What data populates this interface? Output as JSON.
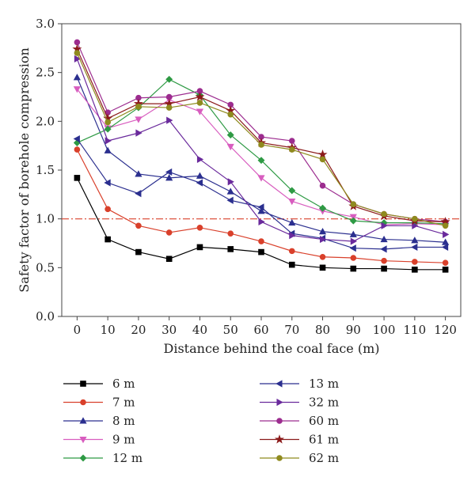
{
  "chart_data": {
    "type": "line",
    "xlabel": "Distance behind the coal face (m)",
    "ylabel": "Safety factor of borehole compression",
    "x": [
      0,
      10,
      20,
      30,
      40,
      50,
      60,
      70,
      80,
      90,
      100,
      110,
      120
    ],
    "xlim": [
      -5,
      125
    ],
    "ylim": [
      0,
      3.0
    ],
    "x_ticks": [
      "0",
      "10",
      "20",
      "30",
      "40",
      "50",
      "60",
      "70",
      "80",
      "90",
      "100",
      "110",
      "120"
    ],
    "y_ticks": [
      "0.0",
      "0.5",
      "1.0",
      "1.5",
      "2.0",
      "2.5",
      "3.0"
    ],
    "reference_line": {
      "y": 1.0,
      "color": "#d9402b",
      "style": "dash-dot"
    },
    "grid": false,
    "legend_position": "bottom",
    "series": [
      {
        "name": "6 m",
        "color": "#000000",
        "marker": "square",
        "values": [
          1.42,
          0.79,
          0.66,
          0.59,
          0.71,
          0.69,
          0.66,
          0.53,
          0.5,
          0.49,
          0.49,
          0.48,
          0.48
        ]
      },
      {
        "name": "7 m",
        "color": "#d9402b",
        "marker": "circle",
        "values": [
          1.71,
          1.1,
          0.93,
          0.86,
          0.91,
          0.85,
          0.77,
          0.67,
          0.61,
          0.6,
          0.57,
          0.56,
          0.55
        ]
      },
      {
        "name": "8 m",
        "color": "#2b2f8f",
        "marker": "triangle-up",
        "values": [
          2.45,
          1.7,
          1.46,
          1.42,
          1.44,
          1.28,
          1.08,
          0.96,
          0.87,
          0.84,
          0.79,
          0.78,
          0.76
        ]
      },
      {
        "name": "9 m",
        "color": "#d85dbf",
        "marker": "triangle-down",
        "values": [
          2.33,
          1.93,
          2.02,
          2.22,
          2.1,
          1.74,
          1.42,
          1.18,
          1.08,
          1.02,
          0.94,
          0.95,
          0.94
        ]
      },
      {
        "name": "12 m",
        "color": "#2e9a44",
        "marker": "diamond",
        "values": [
          1.78,
          1.92,
          2.14,
          2.43,
          2.27,
          1.86,
          1.6,
          1.29,
          1.11,
          0.98,
          0.96,
          0.96,
          0.95
        ]
      },
      {
        "name": "13 m",
        "color": "#2b2f8f",
        "marker": "triangle-left",
        "values": [
          1.82,
          1.37,
          1.26,
          1.48,
          1.37,
          1.19,
          1.12,
          0.85,
          0.8,
          0.7,
          0.69,
          0.71,
          0.71
        ]
      },
      {
        "name": "32 m",
        "color": "#6a2a9c",
        "marker": "triangle-right",
        "values": [
          2.64,
          1.8,
          1.88,
          2.01,
          1.61,
          1.38,
          0.97,
          0.83,
          0.79,
          0.77,
          0.93,
          0.93,
          0.84
        ]
      },
      {
        "name": "60 m",
        "color": "#9c2c8f",
        "marker": "circle",
        "values": [
          2.81,
          2.09,
          2.24,
          2.25,
          2.31,
          2.17,
          1.84,
          1.8,
          1.34,
          1.15,
          1.05,
          1.0,
          0.97
        ]
      },
      {
        "name": "61 m",
        "color": "#8b1a1a",
        "marker": "star",
        "values": [
          2.74,
          2.03,
          2.18,
          2.18,
          2.25,
          2.11,
          1.78,
          1.73,
          1.66,
          1.13,
          1.03,
          0.98,
          0.97
        ]
      },
      {
        "name": "62 m",
        "color": "#8f8a1e",
        "marker": "circle",
        "values": [
          2.7,
          1.99,
          2.15,
          2.14,
          2.19,
          2.07,
          1.76,
          1.71,
          1.61,
          1.15,
          1.05,
          1.0,
          0.93
        ]
      }
    ]
  }
}
